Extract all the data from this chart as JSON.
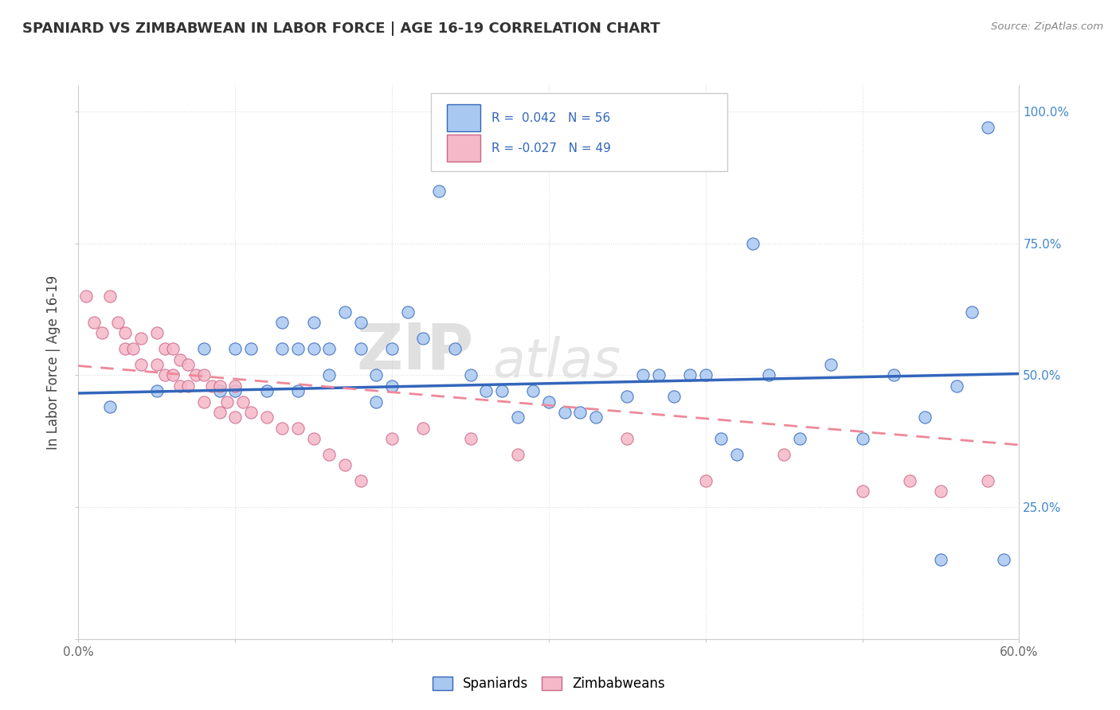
{
  "title": "SPANIARD VS ZIMBABWEAN IN LABOR FORCE | AGE 16-19 CORRELATION CHART",
  "source_text": "Source: ZipAtlas.com",
  "ylabel": "In Labor Force | Age 16-19",
  "x_min": 0.0,
  "x_max": 0.6,
  "y_min": 0.0,
  "y_max": 1.05,
  "x_ticks": [
    0.0,
    0.1,
    0.2,
    0.3,
    0.4,
    0.5,
    0.6
  ],
  "x_tick_labels": [
    "0.0%",
    "",
    "",
    "",
    "",
    "",
    "60.0%"
  ],
  "y_ticks": [
    0.0,
    0.25,
    0.5,
    0.75,
    1.0
  ],
  "y_tick_labels_right": [
    "",
    "25.0%",
    "50.0%",
    "75.0%",
    "100.0%"
  ],
  "legend_line1": "R =  0.042   N = 56",
  "legend_line2": "R = -0.027   N = 49",
  "color_spaniard": "#a8c8f0",
  "color_zimbabwean": "#f5b8c8",
  "line_color_spaniard": "#3366bb",
  "line_color_zimbabwean": "#ee8899",
  "watermark_zip": "ZIP",
  "watermark_atlas": "atlas",
  "spaniard_x": [
    0.02,
    0.05,
    0.08,
    0.09,
    0.1,
    0.1,
    0.11,
    0.12,
    0.13,
    0.13,
    0.14,
    0.14,
    0.15,
    0.15,
    0.16,
    0.16,
    0.17,
    0.18,
    0.18,
    0.19,
    0.19,
    0.2,
    0.2,
    0.21,
    0.22,
    0.23,
    0.24,
    0.25,
    0.26,
    0.27,
    0.28,
    0.29,
    0.3,
    0.31,
    0.32,
    0.33,
    0.35,
    0.36,
    0.37,
    0.38,
    0.39,
    0.4,
    0.41,
    0.42,
    0.43,
    0.44,
    0.46,
    0.48,
    0.5,
    0.52,
    0.54,
    0.55,
    0.56,
    0.57,
    0.58,
    0.59
  ],
  "spaniard_y": [
    0.44,
    0.47,
    0.55,
    0.47,
    0.55,
    0.47,
    0.55,
    0.47,
    0.6,
    0.55,
    0.55,
    0.47,
    0.6,
    0.55,
    0.55,
    0.5,
    0.62,
    0.6,
    0.55,
    0.5,
    0.45,
    0.55,
    0.48,
    0.62,
    0.57,
    0.85,
    0.55,
    0.5,
    0.47,
    0.47,
    0.42,
    0.47,
    0.45,
    0.43,
    0.43,
    0.42,
    0.46,
    0.5,
    0.5,
    0.46,
    0.5,
    0.5,
    0.38,
    0.35,
    0.75,
    0.5,
    0.38,
    0.52,
    0.38,
    0.5,
    0.42,
    0.15,
    0.48,
    0.62,
    0.97,
    0.15
  ],
  "zimbabwean_x": [
    0.005,
    0.01,
    0.015,
    0.02,
    0.025,
    0.03,
    0.03,
    0.035,
    0.04,
    0.04,
    0.05,
    0.05,
    0.055,
    0.055,
    0.06,
    0.06,
    0.065,
    0.065,
    0.07,
    0.07,
    0.075,
    0.08,
    0.08,
    0.085,
    0.09,
    0.09,
    0.095,
    0.1,
    0.1,
    0.105,
    0.11,
    0.12,
    0.13,
    0.14,
    0.15,
    0.16,
    0.17,
    0.18,
    0.2,
    0.22,
    0.25,
    0.28,
    0.35,
    0.4,
    0.45,
    0.5,
    0.53,
    0.55,
    0.58
  ],
  "zimbabwean_y": [
    0.65,
    0.6,
    0.58,
    0.65,
    0.6,
    0.55,
    0.58,
    0.55,
    0.57,
    0.52,
    0.58,
    0.52,
    0.55,
    0.5,
    0.55,
    0.5,
    0.53,
    0.48,
    0.52,
    0.48,
    0.5,
    0.5,
    0.45,
    0.48,
    0.48,
    0.43,
    0.45,
    0.48,
    0.42,
    0.45,
    0.43,
    0.42,
    0.4,
    0.4,
    0.38,
    0.35,
    0.33,
    0.3,
    0.38,
    0.4,
    0.38,
    0.35,
    0.38,
    0.3,
    0.35,
    0.28,
    0.3,
    0.28,
    0.3
  ],
  "spaniard_line_x": [
    0.0,
    0.6
  ],
  "spaniard_line_y": [
    0.466,
    0.503
  ],
  "zimbabwean_line_x": [
    0.0,
    0.6
  ],
  "zimbabwean_line_y": [
    0.518,
    0.368
  ]
}
